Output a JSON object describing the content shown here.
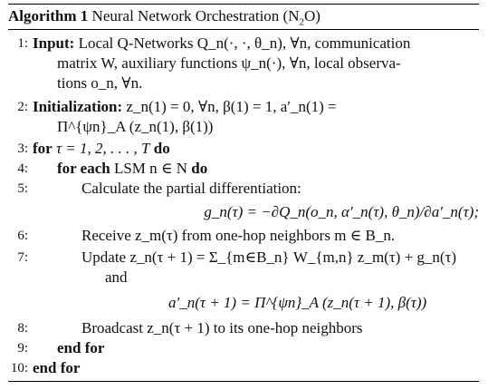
{
  "algorithm": {
    "label": "Algorithm 1",
    "title": "Neural Network Orchestration (N",
    "title_sub": "2",
    "title_end": "O)"
  },
  "lines": [
    {
      "num": "1:",
      "kw": "Input:",
      "text": "Local Q-Networks Q_n(·, ·, θ_n), ∀n, communication"
    },
    {
      "num": "",
      "text": "matrix W, auxiliary functions ψ_n(·), ∀n, local observa-"
    },
    {
      "num": "",
      "text": "tions o_n, ∀n."
    },
    {
      "num": "2:",
      "kw": "Initialization:",
      "text": "z_n(1) = 0, ∀n, β(1) = 1, a′_n(1) ="
    },
    {
      "num": "",
      "text": "Π^{ψn}_A (z_n(1), β(1))"
    },
    {
      "num": "3:",
      "kw": "for",
      "text": "τ = 1, 2, . . . , T",
      "kw2": "do"
    },
    {
      "num": "4:",
      "kw": "for each",
      "text": "LSM n ∈ N",
      "kw2": "do"
    },
    {
      "num": "5:",
      "text": "Calculate the partial differentiation:"
    },
    {
      "num": "",
      "text": "g_n(τ) = −∂Q_n(o_n, α′_n(τ), θ_n)/∂a′_n(τ);"
    },
    {
      "num": "6:",
      "text": "Receive z_m(τ) from one-hop neighbors m ∈ B_n."
    },
    {
      "num": "7:",
      "text": "Update z_n(τ + 1) = Σ_{m∈B_n} W_{m,n} z_m(τ) + g_n(τ)"
    },
    {
      "num": "",
      "text": "and"
    },
    {
      "num": "",
      "text": "a′_n(τ + 1) = Π^{ψn}_A (z_n(τ + 1), β(τ))"
    },
    {
      "num": "8:",
      "text": "Broadcast z_n(τ + 1) to its one-hop neighbors"
    },
    {
      "num": "9:",
      "kw": "end for"
    },
    {
      "num": "10:",
      "kw": "end for"
    }
  ]
}
